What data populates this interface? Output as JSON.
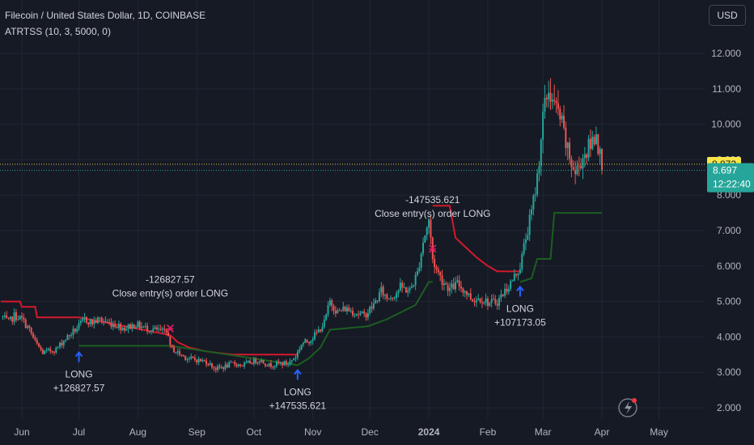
{
  "header": {
    "title": "Filecoin / United States Dollar, 1D, COINBASE",
    "indicator": "ATRTSS (10, 3, 5000, 0)"
  },
  "currency_button": "USD",
  "price_tags": {
    "marker_price": "8.872",
    "last_price": "8.697",
    "countdown": "12:22:40"
  },
  "colors": {
    "background": "#161a25",
    "up_candle": "#26a69a",
    "down_candle": "#ef5350",
    "stop_short": "#d4192b",
    "stop_long": "#1b5e20",
    "long_arrow": "#2962ff",
    "close_marker": "#e91e63",
    "marker_tag": "#f9e547",
    "last_tag": "#26a69a"
  },
  "chart_data": {
    "type": "candlestick",
    "x_ticks": [
      "Jun",
      "Jul",
      "Aug",
      "Sep",
      "Oct",
      "Nov",
      "Dec",
      "2024",
      "Feb",
      "Mar",
      "Apr",
      "May"
    ],
    "y_ticks": [
      "2.000",
      "3.000",
      "4.000",
      "5.000",
      "6.000",
      "7.000",
      "8.000",
      "9.000",
      "10.000",
      "11.000",
      "12.000"
    ],
    "ylim": [
      1.75,
      12.3
    ],
    "close_path": [
      [
        "2023-05-22",
        4.55
      ],
      [
        "2023-05-25",
        4.4
      ],
      [
        "2023-05-28",
        4.6
      ],
      [
        "2023-06-01",
        4.5
      ],
      [
        "2023-06-05",
        4.2
      ],
      [
        "2023-06-08",
        3.85
      ],
      [
        "2023-06-12",
        3.55
      ],
      [
        "2023-06-15",
        3.6
      ],
      [
        "2023-06-19",
        3.65
      ],
      [
        "2023-06-23",
        3.9
      ],
      [
        "2023-06-27",
        4.1
      ],
      [
        "2023-07-01",
        4.3
      ],
      [
        "2023-07-04",
        4.5
      ],
      [
        "2023-07-08",
        4.4
      ],
      [
        "2023-07-12",
        4.5
      ],
      [
        "2023-07-16",
        4.4
      ],
      [
        "2023-07-20",
        4.35
      ],
      [
        "2023-07-25",
        4.25
      ],
      [
        "2023-07-31",
        4.35
      ],
      [
        "2023-08-05",
        4.25
      ],
      [
        "2023-08-10",
        4.2
      ],
      [
        "2023-08-14",
        4.15
      ],
      [
        "2023-08-17",
        4.1
      ],
      [
        "2023-08-18",
        3.7
      ],
      [
        "2023-08-22",
        3.55
      ],
      [
        "2023-08-27",
        3.4
      ],
      [
        "2023-09-01",
        3.35
      ],
      [
        "2023-09-06",
        3.3
      ],
      [
        "2023-09-11",
        3.1
      ],
      [
        "2023-09-15",
        3.15
      ],
      [
        "2023-09-20",
        3.25
      ],
      [
        "2023-09-25",
        3.2
      ],
      [
        "2023-09-30",
        3.3
      ],
      [
        "2023-10-04",
        3.35
      ],
      [
        "2023-10-09",
        3.2
      ],
      [
        "2023-10-14",
        3.25
      ],
      [
        "2023-10-19",
        3.25
      ],
      [
        "2023-10-23",
        3.45
      ],
      [
        "2023-10-26",
        3.8
      ],
      [
        "2023-10-30",
        3.9
      ],
      [
        "2023-11-03",
        4.1
      ],
      [
        "2023-11-07",
        4.4
      ],
      [
        "2023-11-10",
        5.0
      ],
      [
        "2023-11-14",
        4.7
      ],
      [
        "2023-11-18",
        4.8
      ],
      [
        "2023-11-23",
        4.7
      ],
      [
        "2023-11-28",
        4.6
      ],
      [
        "2023-12-03",
        4.9
      ],
      [
        "2023-12-07",
        5.3
      ],
      [
        "2023-12-10",
        5.1
      ],
      [
        "2023-12-14",
        5.2
      ],
      [
        "2023-12-17",
        5.4
      ],
      [
        "2023-12-22",
        5.3
      ],
      [
        "2023-12-26",
        5.8
      ],
      [
        "2023-12-29",
        6.7
      ],
      [
        "2024-01-01",
        7.3
      ],
      [
        "2024-01-03",
        6.2
      ],
      [
        "2024-01-05",
        5.9
      ],
      [
        "2024-01-08",
        5.6
      ],
      [
        "2024-01-12",
        5.35
      ],
      [
        "2024-01-16",
        5.5
      ],
      [
        "2024-01-20",
        5.3
      ],
      [
        "2024-01-24",
        5.05
      ],
      [
        "2024-01-28",
        5.1
      ],
      [
        "2024-02-02",
        4.95
      ],
      [
        "2024-02-06",
        5.0
      ],
      [
        "2024-02-10",
        5.3
      ],
      [
        "2024-02-14",
        5.6
      ],
      [
        "2024-02-18",
        6.0
      ],
      [
        "2024-02-21",
        6.8
      ],
      [
        "2024-02-24",
        7.5
      ],
      [
        "2024-02-27",
        8.5
      ],
      [
        "2024-03-01",
        10.2
      ],
      [
        "2024-03-04",
        11.0
      ],
      [
        "2024-03-07",
        10.5
      ],
      [
        "2024-03-10",
        10.2
      ],
      [
        "2024-03-14",
        9.2
      ],
      [
        "2024-03-18",
        8.6
      ],
      [
        "2024-03-22",
        9.1
      ],
      [
        "2024-03-26",
        9.4
      ],
      [
        "2024-03-29",
        9.8
      ],
      [
        "2024-03-31",
        9.1
      ],
      [
        "2024-04-01",
        8.7
      ]
    ],
    "stop_lines": [
      {
        "name": "short",
        "color": "#d4192b",
        "points": [
          [
            "2023-05-21",
            5.0
          ],
          [
            "2023-05-31",
            5.0
          ],
          [
            "2023-06-01",
            4.85
          ],
          [
            "2023-06-08",
            4.85
          ],
          [
            "2023-06-09",
            4.55
          ],
          [
            "2023-07-01",
            4.55
          ],
          [
            "2023-08-18",
            4.05
          ],
          [
            "2023-08-22",
            3.85
          ],
          [
            "2023-08-28",
            3.7
          ],
          [
            "2023-09-05",
            3.6
          ],
          [
            "2023-09-12",
            3.55
          ],
          [
            "2023-09-20",
            3.5
          ],
          [
            "2023-10-24",
            3.5
          ]
        ]
      },
      {
        "name": "long",
        "color": "#1b5e20",
        "points": [
          [
            "2023-07-01",
            3.75
          ],
          [
            "2023-08-18",
            3.75
          ],
          [
            "2023-10-24",
            3.2
          ],
          [
            "2023-10-30",
            3.4
          ],
          [
            "2023-11-05",
            3.7
          ],
          [
            "2023-11-10",
            4.2
          ],
          [
            "2023-11-30",
            4.3
          ],
          [
            "2023-12-10",
            4.5
          ],
          [
            "2023-12-25",
            4.9
          ],
          [
            "2024-01-01",
            5.55
          ],
          [
            "2024-01-03",
            5.55
          ]
        ]
      },
      {
        "name": "short",
        "color": "#d4192b",
        "points": [
          [
            "2024-01-03",
            7.7
          ],
          [
            "2024-01-12",
            7.7
          ],
          [
            "2024-01-15",
            6.8
          ],
          [
            "2024-01-22",
            6.45
          ],
          [
            "2024-01-26",
            6.25
          ],
          [
            "2024-02-01",
            6.0
          ],
          [
            "2024-02-06",
            5.85
          ],
          [
            "2024-02-18",
            5.85
          ]
        ]
      },
      {
        "name": "long",
        "color": "#1b5e20",
        "points": [
          [
            "2024-02-18",
            5.55
          ],
          [
            "2024-02-24",
            5.65
          ],
          [
            "2024-02-27",
            6.2
          ],
          [
            "2024-03-05",
            6.2
          ],
          [
            "2024-03-07",
            7.5
          ],
          [
            "2024-04-01",
            7.5
          ]
        ]
      }
    ],
    "signals": [
      {
        "kind": "long",
        "date": "2023-07-01",
        "price": 3.7,
        "label_lines": [
          "LONG",
          "+126827.57"
        ]
      },
      {
        "kind": "close",
        "date": "2023-08-18",
        "price": 4.25,
        "label_lines": [
          "-126827.57",
          "Close entry(s) order LONG"
        ]
      },
      {
        "kind": "long",
        "date": "2023-10-24",
        "price": 3.2,
        "label_lines": [
          "LONG",
          "+147535.621"
        ]
      },
      {
        "kind": "close",
        "date": "2024-01-03",
        "price": 6.5,
        "label_lines": [
          "-147535.621",
          "Close entry(s) order LONG"
        ]
      },
      {
        "kind": "long",
        "date": "2024-02-18",
        "price": 5.55,
        "label_lines": [
          "LONG",
          "+107173.05"
        ]
      }
    ],
    "marker_line": 8.872,
    "last_price_line": 8.697
  }
}
